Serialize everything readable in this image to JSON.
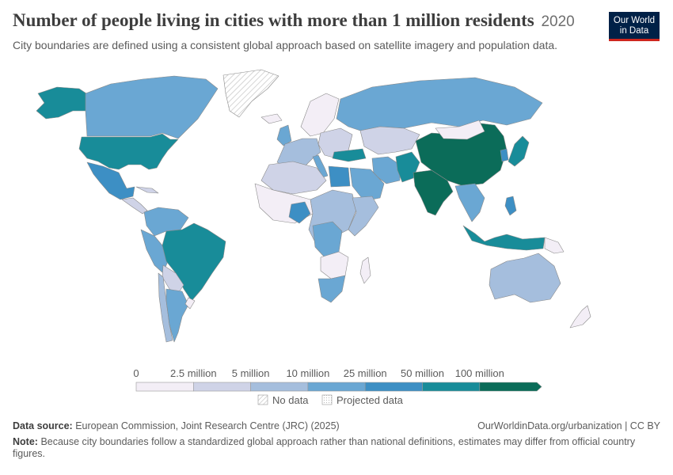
{
  "title": "Number of people living in cities with more than 1 million residents",
  "year": "2020",
  "subtitle": "City boundaries are defined using a consistent global approach based on satellite imagery and population data.",
  "logo": {
    "line1": "Our World",
    "line2": "in Data"
  },
  "legend": {
    "ticks": [
      "0",
      "2.5 million",
      "5 million",
      "10 million",
      "25 million",
      "50 million",
      "100 million"
    ],
    "colors": [
      "#f3eef6",
      "#cfd3e7",
      "#a5bedd",
      "#6aa7d3",
      "#3d8fc4",
      "#188c99",
      "#0b6c59"
    ],
    "no_data_label": "No data",
    "projected_label": "Projected data"
  },
  "source": {
    "label": "Data source:",
    "text": "European Commission, Joint Research Centre (JRC) (2025)",
    "url_text": "OurWorldinData.org/urbanization | CC BY"
  },
  "note": {
    "label": "Note:",
    "text": "Because city boundaries follow a standardized global approach rather than national definitions, estimates may differ from official country figures."
  }
}
